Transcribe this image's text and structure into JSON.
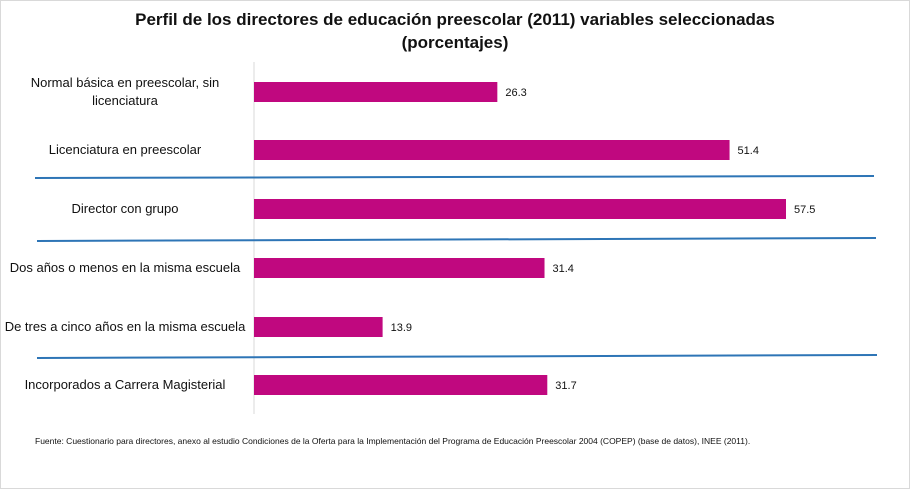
{
  "colors": {
    "bar": "#c0087f",
    "separator": "#2e75b6",
    "axis": "#d9d9d9"
  },
  "chart_data": {
    "type": "bar",
    "orientation": "horizontal",
    "title": "Perfil de los directores de educación preescolar (2011) variables seleccionadas",
    "subtitle": "(porcentajes)",
    "categories": [
      "Normal básica en preescolar, sin licenciatura",
      "Licenciatura en preescolar",
      "Director con grupo",
      "Dos años o menos en la misma escuela",
      "De tres a cinco años en la misma escuela",
      "Incorporados a Carrera Magisterial"
    ],
    "values": [
      26.3,
      51.4,
      57.5,
      31.4,
      13.9,
      31.7
    ],
    "value_labels": [
      "26.3",
      "51.4",
      "57.5",
      "31.4",
      "13.9",
      "31.7"
    ],
    "xlim": [
      0,
      65
    ],
    "grid": false,
    "legend": "none"
  },
  "source": "Fuente: Cuestionario para directores, anexo al estudio Condiciones de la Oferta para la Implementación del Programa de Educación Preescolar 2004 (COPEP) (base de datos), INEE (2011)."
}
